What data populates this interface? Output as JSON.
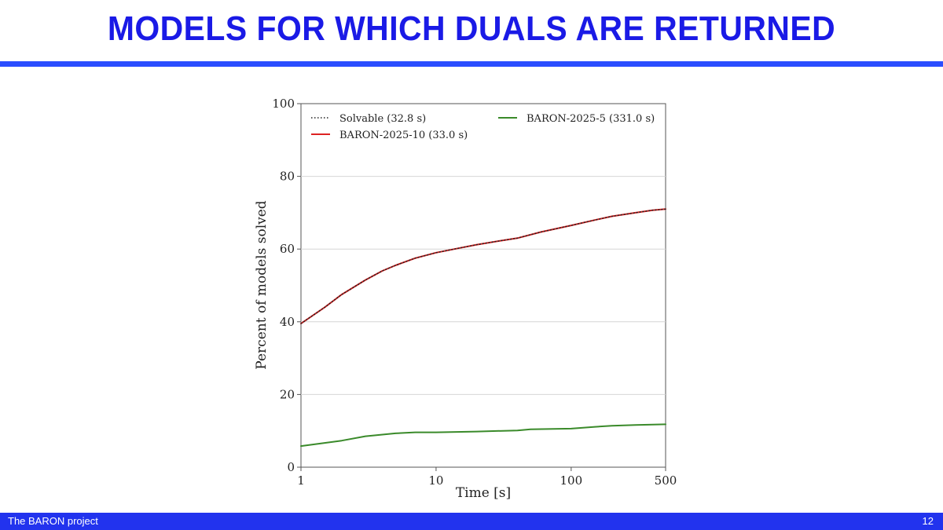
{
  "slide": {
    "title": "MODELS FOR WHICH DUALS ARE RETURNED",
    "footer_left": "The BARON project",
    "page_number": "12",
    "accent_color": "#2233ee",
    "title_color": "#1a1ae6"
  },
  "chart_data": {
    "type": "line",
    "title": "",
    "xlabel": "Time [s]",
    "ylabel": "Percent of models solved",
    "xscale": "log",
    "xlim": [
      1,
      500
    ],
    "ylim": [
      0,
      100
    ],
    "xticks": [
      1,
      10,
      100,
      500
    ],
    "xtick_labels": [
      "1",
      "10",
      "100",
      "500"
    ],
    "yticks": [
      0,
      20,
      40,
      60,
      80,
      100
    ],
    "ytick_labels": [
      "0",
      "20",
      "40",
      "60",
      "80",
      "100"
    ],
    "grid": "horizontal",
    "legend_position": "top",
    "series": [
      {
        "name": "Solvable (32.8 s)",
        "color": "#222222",
        "style": "dotted",
        "x": [
          1,
          1.5,
          2,
          3,
          4,
          5,
          7,
          10,
          15,
          20,
          30,
          40,
          60,
          100,
          150,
          200,
          300,
          400,
          500
        ],
        "y": [
          39.5,
          44,
          47.5,
          51.5,
          54,
          55.5,
          57.5,
          59,
          60.3,
          61.2,
          62.3,
          63,
          64.7,
          66.5,
          68,
          69,
          70,
          70.7,
          71
        ]
      },
      {
        "name": "BARON-2025-10 (33.0 s)",
        "color": "#dd2222",
        "style": "solid",
        "x": [
          1,
          1.5,
          2,
          3,
          4,
          5,
          7,
          10,
          15,
          20,
          30,
          40,
          60,
          100,
          150,
          200,
          300,
          400,
          500
        ],
        "y": [
          39.5,
          44,
          47.5,
          51.5,
          54,
          55.5,
          57.5,
          59,
          60.3,
          61.2,
          62.3,
          63,
          64.7,
          66.5,
          68,
          69,
          70,
          70.7,
          71
        ]
      },
      {
        "name": "BARON-2025-5 (331.0 s)",
        "color": "#3a8a2a",
        "style": "solid",
        "x": [
          1,
          2,
          3,
          5,
          7,
          10,
          20,
          40,
          50,
          100,
          150,
          200,
          300,
          500
        ],
        "y": [
          5.8,
          7.3,
          8.5,
          9.3,
          9.6,
          9.6,
          9.8,
          10.1,
          10.4,
          10.6,
          11.1,
          11.4,
          11.6,
          11.8
        ]
      }
    ]
  }
}
